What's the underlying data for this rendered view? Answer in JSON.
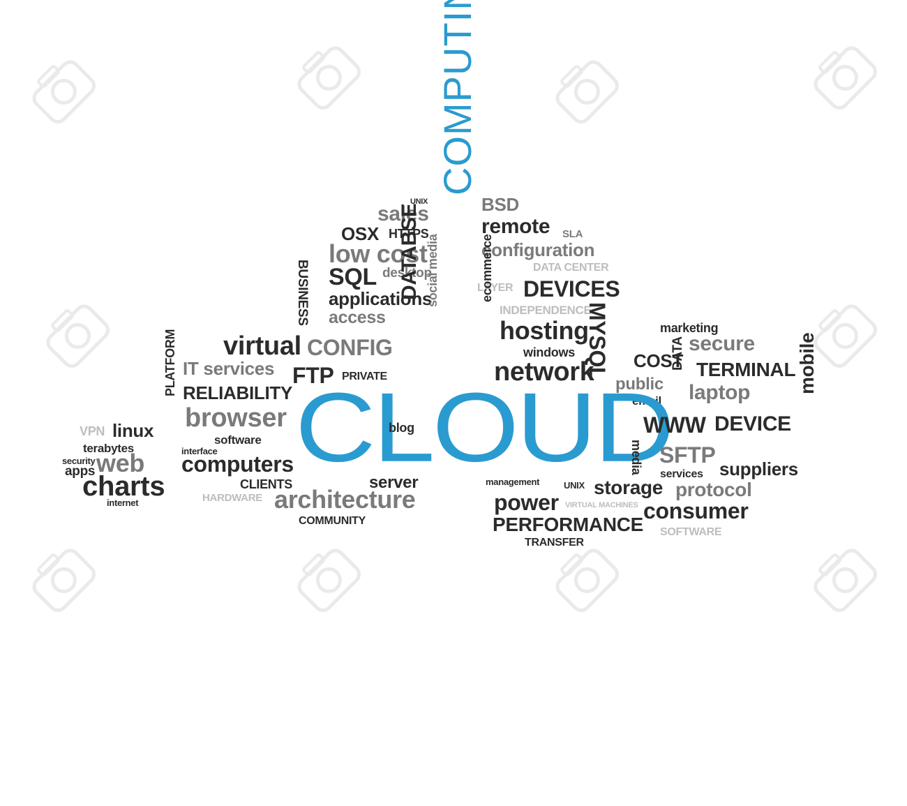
{
  "colors": {
    "background": "#ffffff",
    "dark": "#2b2b2b",
    "mid": "#7a7a7a",
    "light": "#bdbdbd",
    "blue": "#2a9bd0"
  },
  "watermark_icon": "camera-watermark-icon",
  "words": [
    {
      "text": "UNIX",
      "color": "dark"
    },
    {
      "text": "sales",
      "color": "mid"
    },
    {
      "text": "OSX",
      "color": "dark"
    },
    {
      "text": "HTTPS",
      "color": "dark"
    },
    {
      "text": "low cost",
      "color": "mid"
    },
    {
      "text": "desktop",
      "color": "mid"
    },
    {
      "text": "SQL",
      "color": "dark"
    },
    {
      "text": "BUSINESS",
      "color": "dark"
    },
    {
      "text": "applications",
      "color": "dark"
    },
    {
      "text": "access",
      "color": "mid"
    },
    {
      "text": "DATABSE",
      "color": "dark"
    },
    {
      "text": "social media",
      "color": "mid"
    },
    {
      "text": "COMPUTING",
      "color": "blue"
    },
    {
      "text": "BSD",
      "color": "mid"
    },
    {
      "text": "remote",
      "color": "dark"
    },
    {
      "text": "SLA",
      "color": "mid"
    },
    {
      "text": "configuration",
      "color": "mid"
    },
    {
      "text": "DATA CENTER",
      "color": "light"
    },
    {
      "text": "LAYER",
      "color": "light"
    },
    {
      "text": "DEVICES",
      "color": "dark"
    },
    {
      "text": "INDEPENDENCE",
      "color": "light"
    },
    {
      "text": "ecommerce",
      "color": "dark"
    },
    {
      "text": "hosting",
      "color": "dark"
    },
    {
      "text": "MYSQL",
      "color": "dark"
    },
    {
      "text": "windows",
      "color": "dark"
    },
    {
      "text": "network",
      "color": "dark"
    },
    {
      "text": "virtual",
      "color": "dark"
    },
    {
      "text": "CONFIG",
      "color": "mid"
    },
    {
      "text": "IT services",
      "color": "mid"
    },
    {
      "text": "FTP",
      "color": "dark"
    },
    {
      "text": "PRIVATE",
      "color": "dark"
    },
    {
      "text": "RELIABILITY",
      "color": "dark"
    },
    {
      "text": "marketing",
      "color": "dark"
    },
    {
      "text": "secure",
      "color": "mid"
    },
    {
      "text": "COST",
      "color": "dark"
    },
    {
      "text": "TERMINAL",
      "color": "dark"
    },
    {
      "text": "public",
      "color": "mid"
    },
    {
      "text": "email",
      "color": "dark"
    },
    {
      "text": "DATA",
      "color": "dark"
    },
    {
      "text": "laptop",
      "color": "mid"
    },
    {
      "text": "PLATFORM",
      "color": "dark"
    },
    {
      "text": "browser",
      "color": "mid"
    },
    {
      "text": "CLOUD",
      "color": "blue"
    },
    {
      "text": "blog",
      "color": "dark"
    },
    {
      "text": "WWW",
      "color": "dark"
    },
    {
      "text": "DEVICE",
      "color": "dark"
    },
    {
      "text": "mobile",
      "color": "dark"
    },
    {
      "text": "VPN",
      "color": "light"
    },
    {
      "text": "linux",
      "color": "dark"
    },
    {
      "text": "terabytes",
      "color": "dark"
    },
    {
      "text": "security",
      "color": "dark"
    },
    {
      "text": "web",
      "color": "mid"
    },
    {
      "text": "apps",
      "color": "dark"
    },
    {
      "text": "charts",
      "color": "dark"
    },
    {
      "text": "internet",
      "color": "dark"
    },
    {
      "text": "software",
      "color": "dark"
    },
    {
      "text": "interface",
      "color": "dark"
    },
    {
      "text": "computers",
      "color": "dark"
    },
    {
      "text": "media",
      "color": "dark"
    },
    {
      "text": "SFTP",
      "color": "mid"
    },
    {
      "text": "services",
      "color": "dark"
    },
    {
      "text": "suppliers",
      "color": "dark"
    },
    {
      "text": "CLIENTS",
      "color": "dark"
    },
    {
      "text": "server",
      "color": "dark"
    },
    {
      "text": "management",
      "color": "dark"
    },
    {
      "text": "UNIX",
      "color": "dark"
    },
    {
      "text": "storage",
      "color": "dark"
    },
    {
      "text": "protocol",
      "color": "mid"
    },
    {
      "text": "HARDWARE",
      "color": "light"
    },
    {
      "text": "architecture",
      "color": "mid"
    },
    {
      "text": "power",
      "color": "dark"
    },
    {
      "text": "VIRTUAL MACHINES",
      "color": "light"
    },
    {
      "text": "consumer",
      "color": "dark"
    },
    {
      "text": "COMMUNITY",
      "color": "dark"
    },
    {
      "text": "PERFORMANCE",
      "color": "dark"
    },
    {
      "text": "SOFTWARE",
      "color": "light"
    },
    {
      "text": "TRANSFER",
      "color": "dark"
    }
  ]
}
